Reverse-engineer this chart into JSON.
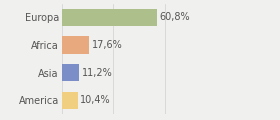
{
  "categories": [
    "Europa",
    "Africa",
    "Asia",
    "America"
  ],
  "values": [
    60.8,
    17.6,
    11.2,
    10.4
  ],
  "labels": [
    "60,8%",
    "17,6%",
    "11,2%",
    "10,4%"
  ],
  "colors": [
    "#adbf8a",
    "#e8a97e",
    "#7b8ec8",
    "#f0cf80"
  ],
  "xlim": [
    0,
    100
  ],
  "background_color": "#f0f0ee",
  "bar_height": 0.62,
  "label_fontsize": 7.0,
  "category_fontsize": 7.0,
  "grid_color": "#d0d0d0",
  "text_color": "#555555"
}
